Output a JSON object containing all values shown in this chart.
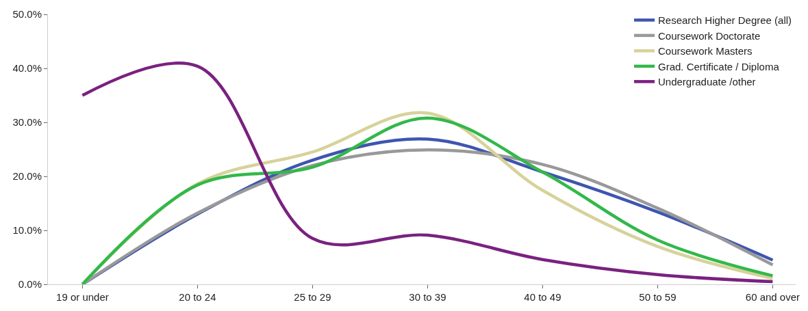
{
  "chart_data": {
    "type": "line",
    "categories": [
      "19 or under",
      "20 to 24",
      "25 to 29",
      "30 to 39",
      "40 to 49",
      "50 to 59",
      "60 and over"
    ],
    "series": [
      {
        "name": "Research Higher Degree (all)",
        "color": "#3f55b0",
        "values": [
          0,
          13,
          23,
          26.9,
          20.8,
          13.4,
          4.5
        ]
      },
      {
        "name": "Coursework Doctorate",
        "color": "#999999",
        "values": [
          0,
          13.2,
          22,
          24.9,
          22.2,
          14.1,
          3.6
        ]
      },
      {
        "name": "Coursework Masters",
        "color": "#d6d29a",
        "values": [
          0,
          18.6,
          24.5,
          31.7,
          17.4,
          7,
          1.1
        ]
      },
      {
        "name": "Grad. Certificate / Diploma",
        "color": "#33b84a",
        "values": [
          0,
          18.4,
          21.7,
          30.8,
          20.8,
          8.2,
          1.6
        ]
      },
      {
        "name": "Undergraduate /other",
        "color": "#7a2180",
        "values": [
          35,
          40.4,
          8.5,
          9.1,
          4.6,
          1.8,
          0.5
        ]
      }
    ],
    "ylim": [
      0,
      50
    ],
    "yticks": [
      {
        "value": 0,
        "label": "0.0%"
      },
      {
        "value": 10,
        "label": "10.0%"
      },
      {
        "value": 20,
        "label": "20.0%"
      },
      {
        "value": 30,
        "label": "30.0%"
      },
      {
        "value": 40,
        "label": "40.0%"
      },
      {
        "value": 50,
        "label": "50.0%"
      }
    ],
    "legend": "top right",
    "marker": "none",
    "line_style": "solid"
  }
}
